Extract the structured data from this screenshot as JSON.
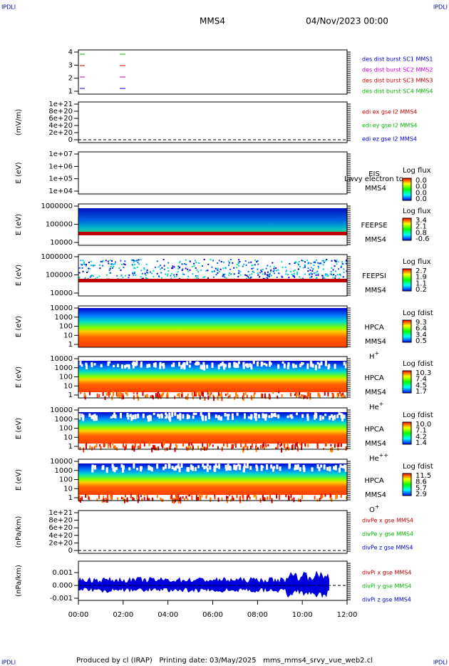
{
  "corner_label": "IPDLI",
  "header": {
    "spacecraft": "MMS4",
    "date": "04/Nov/2023 00:00"
  },
  "panels": [
    {
      "y_ticks": [
        "4",
        "3",
        "2",
        "1"
      ],
      "legend": [
        {
          "name": "des dist burst SC1 MMS1",
          "color": "#0000cc"
        },
        {
          "name": "des dist burst SC2 MMS2",
          "color": "#cc00cc"
        },
        {
          "name": "des dist burst SC3 MMS3",
          "color": "#cc0000"
        },
        {
          "name": "des dist burst SC4 MMS4",
          "color": "#00bb00"
        }
      ]
    },
    {
      "y_label": "(mV/m)",
      "y_ticks": [
        "1e+21",
        "8e+20",
        "6e+20",
        "4e+20",
        "2e+20",
        "0"
      ],
      "legend": [
        {
          "name": "edi ex gse l2 MMS4",
          "color": "#cc0000"
        },
        {
          "name": "edi ey gse l2 MMS4",
          "color": "#00bb00"
        },
        {
          "name": "edi ez gse l2 MMS4",
          "color": "#0000cc"
        }
      ]
    },
    {
      "y_label": "E (eV)",
      "y_ticks": [
        "1e+07",
        "1e+06",
        "1e+05",
        "1e+04"
      ],
      "instrument": "EIS",
      "spacecraft": "MMS4",
      "note": "Lwvy electron to",
      "colorbar": {
        "title": "Log flux",
        "labels": [
          "0.0",
          "0.0",
          "0.0",
          "0.0"
        ]
      }
    },
    {
      "y_label": "E (eV)",
      "y_ticks": [
        "1000000",
        "100000",
        "10000"
      ],
      "instrument": "FEEPSE",
      "spacecraft": "MMS4",
      "colorbar": {
        "title": "Log flux",
        "labels": [
          "3.4",
          "2.1",
          "0.8",
          "-0.6"
        ]
      }
    },
    {
      "y_label": "E (eV)",
      "y_ticks": [
        "1000000",
        "100000",
        "10000"
      ],
      "instrument": "FEEPSI",
      "spacecraft": "MMS4",
      "colorbar": {
        "title": "Log flux",
        "labels": [
          "2.7",
          "1.9",
          "1.1",
          "0.2"
        ]
      }
    },
    {
      "y_label": "E (eV)",
      "y_ticks": [
        "10000",
        "1000",
        "100",
        "10",
        "1"
      ],
      "instrument": "HPCA",
      "spacecraft": "MMS4",
      "species": "H",
      "charge": "+",
      "colorbar": {
        "title": "Log fdist",
        "labels": [
          "9.3",
          "6.4",
          "3.4",
          "0.5"
        ]
      }
    },
    {
      "y_label": "E (eV)",
      "y_ticks": [
        "10000",
        "1000",
        "100",
        "10",
        "1"
      ],
      "instrument": "HPCA",
      "spacecraft": "MMS4",
      "species": "He",
      "charge": "+",
      "colorbar": {
        "title": "Log fdist",
        "labels": [
          "10.3",
          "7.4",
          "4.5",
          "1.7"
        ]
      }
    },
    {
      "y_label": "E (eV)",
      "y_ticks": [
        "10000",
        "1000",
        "100",
        "10",
        "1"
      ],
      "instrument": "HPCA",
      "spacecraft": "MMS4",
      "species": "He",
      "charge": "++",
      "colorbar": {
        "title": "Log fdist",
        "labels": [
          "10.0",
          "7.1",
          "4.2",
          "1.4"
        ]
      }
    },
    {
      "y_label": "E (eV)",
      "y_ticks": [
        "10000",
        "1000",
        "100",
        "10",
        "1"
      ],
      "instrument": "HPCA",
      "spacecraft": "MMS4",
      "species": "O",
      "charge": "+",
      "colorbar": {
        "title": "Log fdist",
        "labels": [
          "11.5",
          "8.6",
          "5.7",
          "2.9"
        ]
      }
    },
    {
      "y_label": "(nPa/km)",
      "y_ticks": [
        "1e+21",
        "8e+20",
        "6e+20",
        "4e+20",
        "2e+20",
        "0"
      ],
      "legend": [
        {
          "name": "divPe x gse MMS4",
          "color": "#cc0000"
        },
        {
          "name": "divPe y gse MMS4",
          "color": "#00bb00"
        },
        {
          "name": "divPe z gse MMS4",
          "color": "#0000cc"
        }
      ]
    },
    {
      "y_label": "(nPa/km)",
      "y_ticks": [
        "0.001",
        "0.000",
        "-0.001"
      ],
      "legend": [
        {
          "name": "divPi x gse MMS4",
          "color": "#cc0000"
        },
        {
          "name": "divPi y gse MMS4",
          "color": "#00bb00"
        },
        {
          "name": "divPi z gse MMS4",
          "color": "#0000cc"
        }
      ]
    }
  ],
  "x_ticks": [
    "00:00",
    "02:00",
    "04:00",
    "06:00",
    "08:00",
    "10:00",
    "12:00"
  ],
  "footer": "Produced by cl (IRAP)   Printing date: 03/May/2025   mms_mms4_srvy_vue_web2.cl"
}
